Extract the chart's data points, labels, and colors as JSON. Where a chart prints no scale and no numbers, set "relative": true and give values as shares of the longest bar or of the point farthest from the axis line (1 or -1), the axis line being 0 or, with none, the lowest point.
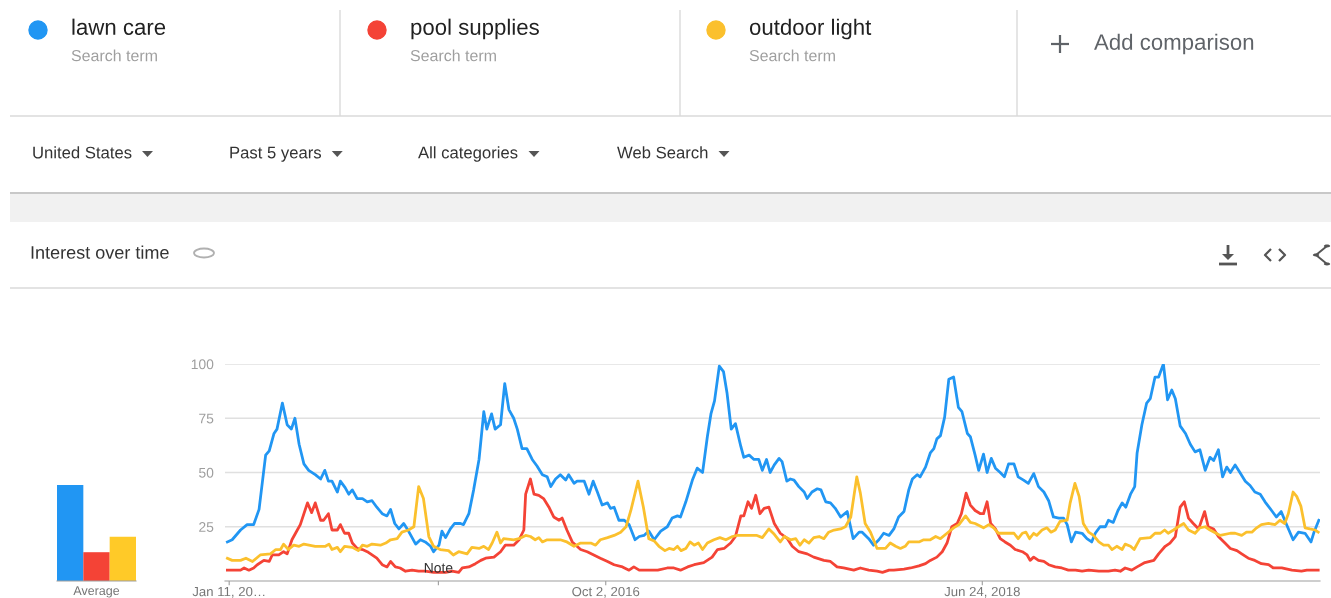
{
  "chart_data": [
    {
      "type": "other",
      "annotations": [
        "Search term",
        "Search term",
        "Search term",
        "Add comparison",
        "United States",
        "Past 5 years",
        "All categories",
        "Web Search"
      ]
    },
    {
      "type": "bar",
      "categories": [
        null,
        null,
        null
      ],
      "values": [
        1,
        0.3,
        0.46
      ],
      "colors": [
        "#2196f3",
        "#f44336",
        "#ffca28"
      ],
      "relative": true,
      "xlabel": "Average"
    },
    {
      "type": "line",
      "title": "Interest over time",
      "xlim": [
        "2015-01-04",
        "2020-01-10"
      ],
      "ylim": [
        0,
        100
      ],
      "yticks": [
        25,
        50,
        75,
        100
      ],
      "xticks": [
        {
          "value": "2015-01-11",
          "label": "Jan 11, 20…"
        },
        {
          "value": "2015-12-27",
          "label": null
        },
        {
          "value": "2016-10-02",
          "label": "Oct 2, 2016"
        },
        {
          "value": "2018-06-24",
          "label": "Jun 24, 2018"
        }
      ],
      "grid": "y",
      "legend": "top left",
      "line_style": "solid",
      "marker": "none",
      "annotations": [
        "Note"
      ],
      "series": [
        {
          "name": "lawn care",
          "color": "#2196f3",
          "x": [
            "2015-01-08",
            "2015-01-16",
            "2015-01-30",
            "2015-02-10",
            "2015-02-21",
            "2015-03-02",
            "2015-03-13",
            "2015-03-19",
            "2015-03-27",
            "2015-04-01",
            "2015-04-10",
            "2015-04-18",
            "2015-04-25",
            "2015-05-01",
            "2015-05-08",
            "2015-05-16",
            "2015-05-24",
            "2015-06-04",
            "2015-06-13",
            "2015-06-20",
            "2015-06-26",
            "2015-07-02",
            "2015-07-11",
            "2015-07-16",
            "2015-07-24",
            "2015-07-30",
            "2015-08-05",
            "2015-08-13",
            "2015-08-22",
            "2015-08-30",
            "2015-09-07",
            "2015-09-15",
            "2015-09-24",
            "2015-10-02",
            "2015-10-08",
            "2015-10-15",
            "2015-10-22",
            "2015-10-30",
            "2015-11-07",
            "2015-11-19",
            "2015-11-27",
            "2015-12-05",
            "2015-12-14",
            "2015-12-19",
            "2015-12-28",
            "2016-01-02",
            "2016-01-08",
            "2016-01-16",
            "2016-01-23",
            "2016-02-02",
            "2016-02-07",
            "2016-02-16",
            "2016-02-24",
            "2016-03-04",
            "2016-03-12",
            "2016-03-17",
            "2016-03-25",
            "2016-03-31",
            "2016-04-09",
            "2016-04-16",
            "2016-04-23",
            "2016-05-01",
            "2016-05-07",
            "2016-05-15",
            "2016-05-23",
            "2016-06-01",
            "2016-06-09",
            "2016-06-18",
            "2016-06-26",
            "2016-07-02",
            "2016-07-10",
            "2016-07-18",
            "2016-07-27",
            "2016-08-01",
            "2016-08-10",
            "2016-08-15",
            "2016-08-27",
            "2016-09-04",
            "2016-09-11",
            "2016-09-18",
            "2016-09-26",
            "2016-10-05",
            "2016-10-10",
            "2016-10-16",
            "2016-10-24",
            "2016-11-02",
            "2016-11-10",
            "2016-11-20",
            "2016-11-27",
            "2016-12-05",
            "2016-12-13",
            "2016-12-22",
            "2017-01-02",
            "2017-01-13",
            "2017-01-21",
            "2017-01-30",
            "2017-02-04",
            "2017-02-13",
            "2017-02-24",
            "2017-03-04",
            "2017-03-13",
            "2017-03-21",
            "2017-03-27",
            "2017-04-02",
            "2017-04-10",
            "2017-04-17",
            "2017-04-23",
            "2017-04-30",
            "2017-05-07",
            "2017-05-16",
            "2017-05-21",
            "2017-05-30",
            "2017-06-07",
            "2017-06-15",
            "2017-06-21",
            "2017-06-28",
            "2017-07-04",
            "2017-07-11",
            "2017-07-19",
            "2017-07-24",
            "2017-08-01",
            "2017-08-07",
            "2017-08-13",
            "2017-08-21",
            "2017-08-30",
            "2017-09-04",
            "2017-09-12",
            "2017-09-21",
            "2017-09-27",
            "2017-10-05",
            "2017-10-13",
            "2017-10-21",
            "2017-10-30",
            "2017-11-10",
            "2017-11-20",
            "2017-11-30",
            "2017-12-05",
            "2017-12-16",
            "2017-12-24",
            "2018-01-02",
            "2018-01-10",
            "2018-01-19",
            "2018-01-27",
            "2018-02-04",
            "2018-02-13",
            "2018-02-21",
            "2018-02-27",
            "2018-03-07",
            "2018-03-12",
            "2018-03-21",
            "2018-03-29",
            "2018-04-04",
            "2018-04-09",
            "2018-04-15",
            "2018-04-22",
            "2018-04-29",
            "2018-05-07",
            "2018-05-15",
            "2018-05-21",
            "2018-05-30",
            "2018-06-04",
            "2018-06-12",
            "2018-06-18",
            "2018-06-26",
            "2018-07-02",
            "2018-07-09",
            "2018-07-16",
            "2018-07-24",
            "2018-07-31",
            "2018-08-07",
            "2018-08-16",
            "2018-08-23",
            "2018-09-01",
            "2018-09-09",
            "2018-09-18",
            "2018-09-26",
            "2018-10-05",
            "2018-10-13",
            "2018-10-21",
            "2018-10-30",
            "2018-11-07",
            "2018-11-13",
            "2018-11-20",
            "2018-11-27",
            "2018-12-08",
            "2018-12-16",
            "2018-12-24",
            "2018-12-30",
            "2019-01-07",
            "2019-01-16",
            "2019-01-21",
            "2019-01-29",
            "2019-02-06",
            "2019-02-13",
            "2019-02-19",
            "2019-02-27",
            "2019-03-06",
            "2019-03-10",
            "2019-03-18",
            "2019-03-26",
            "2019-04-01",
            "2019-04-09",
            "2019-04-15",
            "2019-04-23",
            "2019-04-30",
            "2019-05-07",
            "2019-05-13",
            "2019-05-21",
            "2019-05-30",
            "2019-06-07",
            "2019-06-15",
            "2019-06-23",
            "2019-07-02",
            "2019-07-10",
            "2019-07-16",
            "2019-07-24",
            "2019-07-31",
            "2019-08-07",
            "2019-08-13",
            "2019-08-21",
            "2019-08-29",
            "2019-09-07",
            "2019-09-15",
            "2019-09-23",
            "2019-10-02",
            "2019-10-10",
            "2019-10-21",
            "2019-10-29",
            "2019-11-06",
            "2019-11-15",
            "2019-11-26",
            "2019-12-05",
            "2019-12-16",
            "2019-12-26",
            "2019-12-31",
            "2020-01-08"
          ],
          "values": [
            18,
            19,
            23.5,
            26,
            26,
            33,
            58,
            60,
            68,
            70,
            82,
            72,
            70,
            75,
            63,
            54,
            51,
            49,
            47,
            51,
            46,
            46,
            41,
            46,
            43,
            40,
            42,
            38,
            38,
            36.5,
            37,
            34,
            31,
            30,
            33,
            26.5,
            24,
            26.5,
            23,
            17,
            19,
            18,
            16,
            13.5,
            16.5,
            23,
            20,
            24,
            26.5,
            26.5,
            26,
            31,
            42,
            56,
            78,
            70,
            77,
            70,
            72,
            91,
            79,
            75,
            70,
            61,
            61,
            56,
            53,
            49,
            48,
            43.5,
            47,
            49,
            46.5,
            49,
            45,
            46,
            46,
            40,
            46,
            41,
            35,
            36,
            33.5,
            34,
            28,
            28,
            26,
            19,
            20.5,
            21,
            23,
            19,
            23,
            25,
            29,
            30,
            29.5,
            36.5,
            46.5,
            52,
            50,
            66.5,
            77,
            83,
            99,
            96.5,
            86.5,
            70,
            72.5,
            62,
            57,
            58,
            56,
            56,
            51,
            56,
            50,
            53.5,
            56.5,
            55,
            46,
            47,
            46.5,
            43.5,
            41,
            38,
            41,
            42.5,
            42,
            36.5,
            36,
            33.5,
            29.5,
            32,
            19.5,
            22.5,
            22.5,
            19.5,
            16.5,
            19,
            22,
            21,
            24,
            29.5,
            32,
            42,
            47,
            49,
            48,
            52.5,
            59,
            61,
            65.5,
            67,
            75.5,
            93,
            94,
            80,
            78,
            68,
            66.5,
            58,
            51,
            58.5,
            50,
            56.5,
            52,
            50,
            48,
            54,
            54,
            48,
            46.5,
            45,
            49.5,
            43.5,
            41,
            37,
            29.5,
            29,
            29,
            26,
            18,
            22.5,
            22,
            19.5,
            18,
            22,
            25,
            25,
            28,
            27,
            32.5,
            36,
            34,
            40,
            43.5,
            59,
            72,
            82,
            84,
            94,
            94,
            100,
            83.5,
            88,
            84,
            71.5,
            68,
            63,
            59.5,
            60.5,
            51,
            57,
            55.5,
            60.5,
            48,
            52.5,
            50,
            53.5,
            50,
            46,
            44,
            41,
            40,
            36.5,
            32.5,
            29.5,
            32,
            26,
            19,
            22.5,
            22,
            18,
            22.5,
            28
          ]
        },
        {
          "name": "pool supplies",
          "color": "#f44336",
          "x": [
            "2015-01-08",
            "2015-01-30",
            "2015-02-05",
            "2015-02-13",
            "2015-02-21",
            "2015-02-27",
            "2015-03-10",
            "2015-03-19",
            "2015-03-24",
            "2015-04-04",
            "2015-04-12",
            "2015-04-18",
            "2015-04-26",
            "2015-05-02",
            "2015-05-10",
            "2015-05-22",
            "2015-05-29",
            "2015-06-04",
            "2015-06-13",
            "2015-06-18",
            "2015-06-26",
            "2015-07-02",
            "2015-07-11",
            "2015-07-16",
            "2015-07-23",
            "2015-07-30",
            "2015-08-05",
            "2015-08-13",
            "2015-08-22",
            "2015-08-30",
            "2015-09-07",
            "2015-09-15",
            "2015-09-24",
            "2015-10-02",
            "2015-10-08",
            "2015-10-16",
            "2015-10-24",
            "2015-11-02",
            "2015-11-13",
            "2015-11-24",
            "2015-12-05",
            "2015-12-19",
            "2016-01-08",
            "2016-01-19",
            "2016-01-30",
            "2016-02-05",
            "2016-02-16",
            "2016-02-27",
            "2016-03-07",
            "2016-03-15",
            "2016-03-29",
            "2016-04-09",
            "2016-04-17",
            "2016-05-01",
            "2016-05-10",
            "2016-05-18",
            "2016-05-21",
            "2016-05-29",
            "2016-06-04",
            "2016-06-12",
            "2016-06-20",
            "2016-06-29",
            "2016-07-07",
            "2016-07-16",
            "2016-07-21",
            "2016-07-29",
            "2016-08-07",
            "2016-08-21",
            "2016-09-01",
            "2016-09-12",
            "2016-09-23",
            "2016-10-05",
            "2016-10-16",
            "2016-10-30",
            "2016-11-10",
            "2016-11-18",
            "2016-11-27",
            "2016-12-11",
            "2016-12-28",
            "2017-01-13",
            "2017-01-24",
            "2017-02-04",
            "2017-02-16",
            "2017-02-27",
            "2017-03-15",
            "2017-03-29",
            "2017-04-07",
            "2017-04-18",
            "2017-04-29",
            "2017-05-07",
            "2017-05-16",
            "2017-05-21",
            "2017-05-28",
            "2017-06-03",
            "2017-06-10",
            "2017-06-17",
            "2017-06-24",
            "2017-07-02",
            "2017-07-11",
            "2017-07-21",
            "2017-08-02",
            "2017-08-10",
            "2017-08-21",
            "2017-09-04",
            "2017-09-15",
            "2017-10-02",
            "2017-10-13",
            "2017-10-24",
            "2017-11-04",
            "2017-11-21",
            "2017-12-02",
            "2017-12-16",
            "2017-12-30",
            "2018-01-08",
            "2018-01-19",
            "2018-01-27",
            "2018-02-13",
            "2018-02-24",
            "2018-03-10",
            "2018-03-21",
            "2018-03-29",
            "2018-04-09",
            "2018-04-18",
            "2018-04-26",
            "2018-05-04",
            "2018-05-13",
            "2018-05-20",
            "2018-05-28",
            "2018-06-04",
            "2018-06-12",
            "2018-06-21",
            "2018-06-26",
            "2018-07-02",
            "2018-07-08",
            "2018-07-16",
            "2018-07-24",
            "2018-08-01",
            "2018-08-10",
            "2018-08-18",
            "2018-08-30",
            "2018-09-07",
            "2018-09-12",
            "2018-09-18",
            "2018-09-26",
            "2018-10-05",
            "2018-10-13",
            "2018-10-24",
            "2018-11-04",
            "2018-11-15",
            "2018-11-27",
            "2018-12-08",
            "2018-12-19",
            "2019-01-05",
            "2019-01-21",
            "2019-02-01",
            "2019-02-10",
            "2019-02-18",
            "2019-03-01",
            "2019-03-10",
            "2019-03-23",
            "2019-04-07",
            "2019-04-15",
            "2019-04-26",
            "2019-05-04",
            "2019-05-13",
            "2019-05-21",
            "2019-05-28",
            "2019-06-04",
            "2019-06-12",
            "2019-06-21",
            "2019-07-01",
            "2019-07-07",
            "2019-07-16",
            "2019-07-24",
            "2019-08-04",
            "2019-08-13",
            "2019-08-24",
            "2019-09-01",
            "2019-09-12",
            "2019-09-23",
            "2019-10-04",
            "2019-10-16",
            "2019-10-24",
            "2019-11-07",
            "2019-11-24",
            "2019-12-10",
            "2019-12-19",
            "2020-01-07"
          ],
          "values": [
            5,
            5,
            6,
            5,
            6,
            7.5,
            9.5,
            9,
            12,
            12,
            13.5,
            12.5,
            19,
            22,
            26,
            36,
            31.5,
            36,
            28,
            28,
            31,
            23.5,
            23.5,
            26,
            22,
            22,
            17.5,
            15,
            14.5,
            13.5,
            12,
            10.5,
            7.5,
            6.5,
            9,
            6.5,
            6,
            4.5,
            5,
            4.5,
            4.5,
            4,
            4,
            4.5,
            4,
            6,
            6.5,
            8,
            9.5,
            10.5,
            11,
            13.5,
            16.5,
            16.5,
            19,
            23.5,
            40,
            47,
            40,
            39.5,
            38,
            34,
            29.5,
            28,
            29,
            23.5,
            18,
            14.5,
            13.5,
            12,
            10.5,
            9,
            7.5,
            6.5,
            5,
            6.5,
            5,
            5,
            5,
            6,
            6,
            5,
            6.5,
            7.5,
            8.5,
            11,
            14.5,
            15,
            17.5,
            20.5,
            30,
            30,
            36.5,
            33.5,
            39.5,
            31,
            33.5,
            34,
            26.5,
            22,
            19.5,
            16,
            13.5,
            12.5,
            11,
            9.5,
            9,
            6.5,
            6,
            5,
            6,
            5,
            4.5,
            4,
            5,
            5,
            5.5,
            6,
            7,
            8,
            9.5,
            11,
            13.5,
            17.5,
            25,
            26.5,
            31,
            40.5,
            35,
            32.5,
            31,
            31,
            36.5,
            26.5,
            24,
            19.5,
            18,
            16.5,
            14.5,
            13.5,
            12,
            9.5,
            11,
            9.5,
            9,
            7.5,
            6.5,
            6,
            5,
            5,
            4.5,
            5,
            4.5,
            4.5,
            5,
            4.5,
            6,
            5,
            6.5,
            8.5,
            9.5,
            12.5,
            16,
            17.5,
            20.5,
            34,
            36.5,
            29,
            26.5,
            24,
            32,
            25,
            24,
            20.5,
            17.5,
            15,
            14,
            12.5,
            10.5,
            9.5,
            8,
            7.5,
            6,
            6,
            5,
            4.5,
            5,
            5
          ]
        },
        {
          "name": "outdoor light",
          "color": "#fbc02d",
          "x": [
            "2015-01-08",
            "2015-01-16",
            "2015-01-30",
            "2015-02-08",
            "2015-02-19",
            "2015-03-04",
            "2015-03-21",
            "2015-03-30",
            "2015-04-07",
            "2015-04-12",
            "2015-04-20",
            "2015-04-29",
            "2015-05-08",
            "2015-05-16",
            "2015-06-04",
            "2015-06-21",
            "2015-06-27",
            "2015-07-02",
            "2015-07-11",
            "2015-07-16",
            "2015-07-23",
            "2015-08-05",
            "2015-08-15",
            "2015-08-22",
            "2015-08-30",
            "2015-09-07",
            "2015-09-21",
            "2015-09-30",
            "2015-10-08",
            "2015-10-19",
            "2015-10-27",
            "2015-11-07",
            "2015-11-16",
            "2015-11-24",
            "2015-12-02",
            "2015-12-11",
            "2015-12-19",
            "2015-12-30",
            "2016-01-13",
            "2016-01-21",
            "2016-01-30",
            "2016-02-13",
            "2016-02-21",
            "2016-03-04",
            "2016-03-12",
            "2016-03-20",
            "2016-03-26",
            "2016-04-03",
            "2016-04-09",
            "2016-04-14",
            "2016-05-01",
            "2016-05-10",
            "2016-05-21",
            "2016-05-29",
            "2016-06-06",
            "2016-06-12",
            "2016-06-18",
            "2016-06-26",
            "2016-07-18",
            "2016-07-29",
            "2016-08-10",
            "2016-08-21",
            "2016-09-07",
            "2016-09-15",
            "2016-09-23",
            "2016-10-05",
            "2016-10-16",
            "2016-10-27",
            "2016-11-05",
            "2016-11-13",
            "2016-11-25",
            "2016-12-04",
            "2016-12-13",
            "2016-12-22",
            "2016-12-30",
            "2017-01-09",
            "2017-01-16",
            "2017-01-24",
            "2017-01-30",
            "2017-02-05",
            "2017-02-13",
            "2017-02-20",
            "2017-02-27",
            "2017-03-06",
            "2017-03-13",
            "2017-03-21",
            "2017-04-01",
            "2017-04-11",
            "2017-04-21",
            "2017-05-02",
            "2017-05-10",
            "2017-06-12",
            "2017-06-21",
            "2017-07-02",
            "2017-07-11",
            "2017-07-21",
            "2017-07-28",
            "2017-08-07",
            "2017-08-16",
            "2017-08-23",
            "2017-08-30",
            "2017-09-07",
            "2017-09-15",
            "2017-09-24",
            "2017-10-02",
            "2017-10-10",
            "2017-10-19",
            "2017-10-30",
            "2017-11-07",
            "2017-11-16",
            "2017-11-26",
            "2017-12-02",
            "2017-12-10",
            "2017-12-19",
            "2017-12-30",
            "2018-01-13",
            "2018-01-21",
            "2018-01-30",
            "2018-02-07",
            "2018-02-15",
            "2018-02-21",
            "2018-03-10",
            "2018-03-18",
            "2018-03-29",
            "2018-04-07",
            "2018-04-15",
            "2018-04-26",
            "2018-05-07",
            "2018-05-16",
            "2018-05-27",
            "2018-06-04",
            "2018-06-12",
            "2018-06-26",
            "2018-07-05",
            "2018-07-13",
            "2018-07-21",
            "2018-08-16",
            "2018-08-23",
            "2018-08-30",
            "2018-09-05",
            "2018-09-11",
            "2018-09-18",
            "2018-09-23",
            "2018-10-02",
            "2018-10-10",
            "2018-10-17",
            "2018-10-24",
            "2018-11-01",
            "2018-11-13",
            "2018-11-18",
            "2018-11-26",
            "2018-12-03",
            "2018-12-10",
            "2018-12-19",
            "2018-12-27",
            "2019-01-05",
            "2019-01-13",
            "2019-01-21",
            "2019-01-27",
            "2019-02-04",
            "2019-02-13",
            "2019-02-18",
            "2019-02-27",
            "2019-03-05",
            "2019-03-15",
            "2019-04-01",
            "2019-04-09",
            "2019-04-18",
            "2019-04-25",
            "2019-05-01",
            "2019-05-10",
            "2019-05-18",
            "2019-05-27",
            "2019-06-04",
            "2019-06-15",
            "2019-06-23",
            "2019-07-02",
            "2019-07-10",
            "2019-07-17",
            "2019-07-27",
            "2019-08-13",
            "2019-08-21",
            "2019-09-01",
            "2019-09-09",
            "2019-09-18",
            "2019-09-26",
            "2019-10-04",
            "2019-10-16",
            "2019-10-27",
            "2019-11-04",
            "2019-11-12",
            "2019-11-18",
            "2019-11-26",
            "2019-12-02",
            "2019-12-09",
            "2019-12-16",
            "2019-12-24",
            "2020-01-02",
            "2020-01-07"
          ],
          "values": [
            10.5,
            9.5,
            9.5,
            10.5,
            9,
            12,
            12.5,
            14.5,
            14.5,
            17,
            14.5,
            16.5,
            16,
            17,
            16,
            16,
            17,
            14.5,
            15.5,
            13.5,
            16,
            15.5,
            14,
            16.5,
            16,
            17,
            16.5,
            17.5,
            19,
            19.5,
            22.5,
            23.5,
            25,
            43.5,
            38,
            20.5,
            16,
            14.5,
            14,
            12,
            13.5,
            12.5,
            15.5,
            15,
            16,
            14.5,
            17.5,
            22.5,
            17.5,
            19.5,
            19,
            19.5,
            21,
            20.5,
            19,
            20,
            18,
            19,
            19,
            18,
            16,
            17.5,
            17.5,
            16.5,
            19,
            20,
            21,
            22.5,
            25,
            32.5,
            46,
            34,
            19.5,
            18.5,
            16,
            14,
            15,
            14.5,
            16,
            14,
            15,
            18,
            16.5,
            17.5,
            14.5,
            17.5,
            19,
            20,
            19,
            20.5,
            21,
            21,
            20,
            24,
            21.5,
            18,
            20.5,
            19,
            19.5,
            16.5,
            19,
            17.5,
            20,
            20.5,
            19.5,
            22.5,
            23.5,
            24,
            25,
            29.5,
            48,
            40.5,
            26.5,
            22.5,
            15,
            15,
            17.5,
            16,
            15,
            16,
            18,
            18,
            19,
            19,
            20.5,
            19.5,
            22,
            24.5,
            26,
            30,
            27,
            26.5,
            24.5,
            26,
            24.5,
            22,
            22,
            19.5,
            22,
            22.5,
            19.5,
            22,
            21,
            23.5,
            24.5,
            22.5,
            23.5,
            27.5,
            28,
            36,
            45,
            39,
            26.5,
            22.5,
            21,
            18,
            16.5,
            16.5,
            14.5,
            16,
            14.5,
            17,
            16,
            14.5,
            19.5,
            20,
            22,
            22,
            23.5,
            22,
            23.5,
            25,
            26.5,
            23.5,
            22,
            24.5,
            25,
            23.5,
            22.5,
            21,
            22,
            22,
            21,
            22.5,
            22.5,
            24.5,
            26,
            26.5,
            26,
            28,
            26.5,
            31,
            41,
            39,
            34.5,
            24.5,
            24,
            23.5,
            22.5
          ]
        }
      ]
    }
  ]
}
